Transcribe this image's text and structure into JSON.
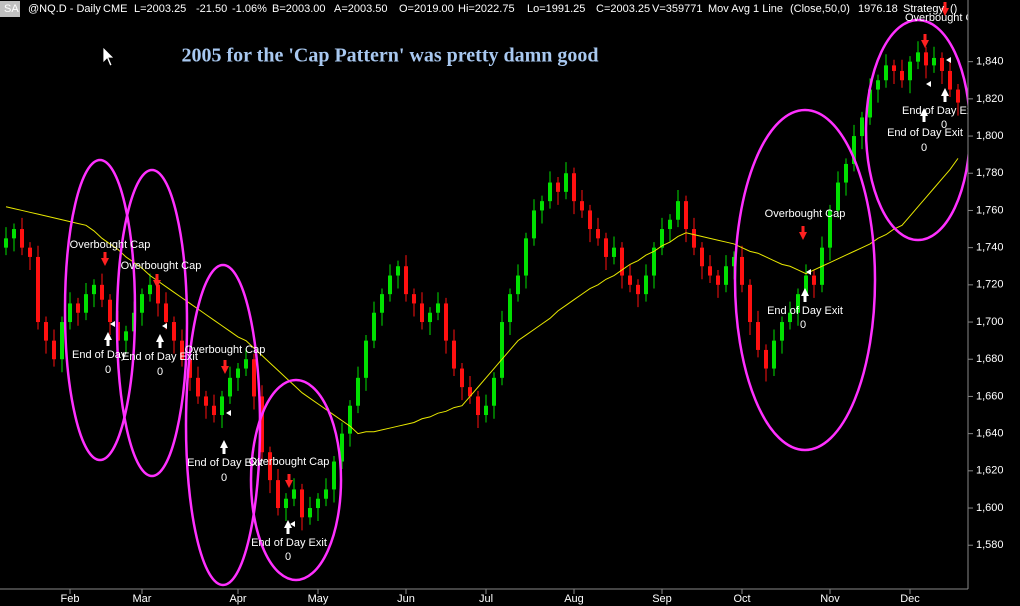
{
  "header": [
    {
      "text": "SA",
      "color": "#000000"
    },
    {
      "text": "@NQ.D - Daily",
      "color": "#00e000"
    },
    {
      "text": "CME",
      "color": "#00e000"
    },
    {
      "text": "L=2003.25",
      "color": "#ff3030"
    },
    {
      "text": "-21.50",
      "color": "#ff3030"
    },
    {
      "text": "-1.06%",
      "color": "#ff3030"
    },
    {
      "text": "B=2003.00",
      "color": "#ffffff"
    },
    {
      "text": "A=2003.50",
      "color": "#ffffff"
    },
    {
      "text": "O=2019.00",
      "color": "#ff3030"
    },
    {
      "text": "Hi=2022.75",
      "color": "#ffffff"
    },
    {
      "text": "Lo=1991.25",
      "color": "#ffffff"
    },
    {
      "text": "C=2003.25",
      "color": "#ff3030"
    },
    {
      "text": "V=359771",
      "color": "#ffffff"
    },
    {
      "text": "Mov Avg 1 Line",
      "color": "#ffffff"
    },
    {
      "text": "(Close,50,0)",
      "color": "#ffffff"
    },
    {
      "text": "1976.18",
      "color": "#ffff40"
    },
    {
      "text": "Strategy",
      "color": "#ffffff"
    },
    {
      "text": "()",
      "color": "#ffffff"
    }
  ],
  "chart_data": {
    "type": "candlestick",
    "title": "2005 for the 'Cap Pattern' was pretty damn good",
    "up_color": "#00e000",
    "down_color": "#ff1010",
    "ylim": [
      1557,
      1871
    ],
    "yticks": [
      {
        "value": 1580,
        "label": "1,580"
      },
      {
        "value": 1600,
        "label": "1,600"
      },
      {
        "value": 1620,
        "label": "1,620"
      },
      {
        "value": 1640,
        "label": "1,640"
      },
      {
        "value": 1660,
        "label": "1,660"
      },
      {
        "value": 1680,
        "label": "1,680"
      },
      {
        "value": 1700,
        "label": "1,700"
      },
      {
        "value": 1720,
        "label": "1,720"
      },
      {
        "value": 1740,
        "label": "1,740"
      },
      {
        "value": 1760,
        "label": "1,760"
      },
      {
        "value": 1780,
        "label": "1,780"
      },
      {
        "value": 1800,
        "label": "1,800"
      },
      {
        "value": 1820,
        "label": "1,820"
      },
      {
        "value": 1840,
        "label": "1,840"
      }
    ],
    "categories": [
      null,
      null,
      null,
      null,
      null,
      null,
      null,
      null,
      "Feb",
      null,
      null,
      null,
      null,
      null,
      null,
      null,
      null,
      "Mar",
      null,
      null,
      null,
      null,
      null,
      null,
      null,
      null,
      null,
      null,
      null,
      "Apr",
      null,
      null,
      null,
      null,
      null,
      null,
      null,
      null,
      null,
      "May",
      null,
      null,
      null,
      null,
      null,
      null,
      null,
      null,
      null,
      null,
      "Jun",
      null,
      null,
      null,
      null,
      null,
      null,
      null,
      null,
      null,
      "Jul",
      null,
      null,
      null,
      null,
      null,
      null,
      null,
      null,
      null,
      null,
      "Aug",
      null,
      null,
      null,
      null,
      null,
      null,
      null,
      null,
      null,
      null,
      "Sep",
      null,
      null,
      null,
      null,
      null,
      null,
      null,
      null,
      null,
      "Oct",
      null,
      null,
      null,
      null,
      null,
      null,
      null,
      null,
      null,
      null,
      "Nov",
      null,
      null,
      null,
      null,
      null,
      null,
      null,
      null,
      null,
      "Dec",
      null,
      null,
      null,
      null,
      null,
      null
    ],
    "open": [
      1740,
      1745,
      1750,
      1740,
      1735,
      1700,
      1690,
      1680,
      1700,
      1710,
      1705,
      1715,
      1720,
      1712,
      1700,
      1690,
      1695,
      1705,
      1715,
      1720,
      1710,
      1700,
      1690,
      1680,
      1670,
      1660,
      1655,
      1650,
      1660,
      1670,
      1675,
      1680,
      1660,
      1630,
      1615,
      1600,
      1605,
      1610,
      1595,
      1600,
      1605,
      1610,
      1625,
      1640,
      1655,
      1670,
      1690,
      1705,
      1715,
      1725,
      1730,
      1715,
      1710,
      1700,
      1705,
      1710,
      1690,
      1675,
      1665,
      1660,
      1650,
      1655,
      1670,
      1700,
      1715,
      1725,
      1745,
      1760,
      1765,
      1775,
      1770,
      1780,
      1765,
      1760,
      1750,
      1745,
      1735,
      1740,
      1725,
      1720,
      1715,
      1725,
      1740,
      1750,
      1755,
      1765,
      1750,
      1740,
      1730,
      1725,
      1720,
      1730,
      1735,
      1720,
      1700,
      1685,
      1675,
      1690,
      1700,
      1705,
      1715,
      1725,
      1720,
      1740,
      1760,
      1775,
      1785,
      1800,
      1810,
      1825,
      1830,
      1838,
      1835,
      1830,
      1840,
      1845,
      1838,
      1842,
      1835,
      1825
    ],
    "high": [
      1751,
      1753,
      1756,
      1743,
      1741,
      1703,
      1696,
      1703,
      1716,
      1713,
      1721,
      1723,
      1726,
      1715,
      1706,
      1698,
      1711,
      1718,
      1726,
      1723,
      1716,
      1703,
      1696,
      1683,
      1676,
      1663,
      1661,
      1663,
      1676,
      1678,
      1686,
      1683,
      1666,
      1633,
      1621,
      1608,
      1616,
      1613,
      1606,
      1608,
      1616,
      1628,
      1646,
      1658,
      1676,
      1693,
      1711,
      1718,
      1731,
      1733,
      1736,
      1718,
      1716,
      1708,
      1716,
      1713,
      1696,
      1678,
      1671,
      1663,
      1661,
      1673,
      1706,
      1718,
      1731,
      1748,
      1766,
      1768,
      1781,
      1778,
      1786,
      1783,
      1771,
      1763,
      1756,
      1748,
      1746,
      1743,
      1731,
      1723,
      1731,
      1743,
      1756,
      1758,
      1771,
      1768,
      1756,
      1743,
      1736,
      1728,
      1736,
      1738,
      1741,
      1723,
      1706,
      1688,
      1696,
      1703,
      1711,
      1718,
      1731,
      1728,
      1746,
      1763,
      1781,
      1788,
      1806,
      1813,
      1831,
      1833,
      1844,
      1841,
      1841,
      1843,
      1851,
      1848,
      1848,
      1845,
      1841,
      1828
    ],
    "low": [
      1736,
      1738,
      1736,
      1728,
      1696,
      1683,
      1676,
      1673,
      1696,
      1698,
      1701,
      1708,
      1708,
      1693,
      1686,
      1683,
      1691,
      1698,
      1711,
      1703,
      1696,
      1683,
      1676,
      1663,
      1656,
      1648,
      1646,
      1643,
      1656,
      1663,
      1671,
      1653,
      1626,
      1608,
      1596,
      1593,
      1601,
      1588,
      1591,
      1593,
      1601,
      1603,
      1621,
      1633,
      1651,
      1663,
      1686,
      1698,
      1711,
      1718,
      1711,
      1703,
      1696,
      1693,
      1701,
      1683,
      1671,
      1658,
      1656,
      1643,
      1646,
      1648,
      1666,
      1693,
      1711,
      1718,
      1741,
      1753,
      1761,
      1763,
      1766,
      1758,
      1756,
      1743,
      1741,
      1728,
      1731,
      1718,
      1716,
      1708,
      1711,
      1718,
      1736,
      1743,
      1751,
      1743,
      1736,
      1723,
      1721,
      1713,
      1716,
      1723,
      1716,
      1693,
      1681,
      1668,
      1671,
      1683,
      1696,
      1698,
      1711,
      1713,
      1716,
      1733,
      1756,
      1768,
      1781,
      1793,
      1806,
      1818,
      1826,
      1828,
      1826,
      1823,
      1836,
      1831,
      1834,
      1828,
      1821,
      1811
    ],
    "close": [
      1745,
      1750,
      1740,
      1735,
      1700,
      1690,
      1680,
      1700,
      1710,
      1705,
      1715,
      1720,
      1712,
      1700,
      1690,
      1695,
      1705,
      1715,
      1720,
      1710,
      1700,
      1690,
      1680,
      1670,
      1660,
      1655,
      1650,
      1660,
      1670,
      1675,
      1680,
      1660,
      1630,
      1615,
      1600,
      1605,
      1610,
      1595,
      1600,
      1605,
      1610,
      1625,
      1640,
      1655,
      1670,
      1690,
      1705,
      1715,
      1725,
      1730,
      1715,
      1710,
      1700,
      1705,
      1710,
      1690,
      1675,
      1665,
      1660,
      1650,
      1655,
      1670,
      1700,
      1715,
      1725,
      1745,
      1760,
      1765,
      1775,
      1770,
      1780,
      1765,
      1760,
      1750,
      1745,
      1735,
      1740,
      1725,
      1720,
      1715,
      1725,
      1740,
      1750,
      1755,
      1765,
      1750,
      1740,
      1730,
      1725,
      1720,
      1730,
      1735,
      1720,
      1700,
      1685,
      1675,
      1690,
      1700,
      1705,
      1715,
      1725,
      1720,
      1740,
      1760,
      1775,
      1785,
      1800,
      1810,
      1825,
      1830,
      1838,
      1835,
      1830,
      1840,
      1845,
      1838,
      1842,
      1835,
      1825,
      1818
    ],
    "moving_average": {
      "color": "#e8e800",
      "values": [
        1762,
        1761,
        1760,
        1759,
        1758,
        1757,
        1756,
        1755,
        1754,
        1753,
        1752,
        1749,
        1745,
        1742,
        1739,
        1735,
        1732,
        1729,
        1725,
        1722,
        1719,
        1716,
        1713,
        1710,
        1707,
        1704,
        1701,
        1698,
        1695,
        1692,
        1690,
        1686,
        1682,
        1678,
        1674,
        1670,
        1666,
        1662,
        1659,
        1656,
        1653,
        1650,
        1647,
        1644,
        1640,
        1641,
        1641,
        1642,
        1643,
        1644,
        1645,
        1646,
        1648,
        1649,
        1651,
        1652,
        1654,
        1655,
        1660,
        1665,
        1670,
        1675,
        1680,
        1685,
        1690,
        1693,
        1696,
        1699,
        1702,
        1706,
        1709,
        1712,
        1715,
        1718,
        1720,
        1723,
        1725,
        1728,
        1731,
        1733,
        1736,
        1738,
        1741,
        1743,
        1746,
        1748,
        1747,
        1746,
        1745,
        1744,
        1743,
        1742,
        1740,
        1738,
        1737,
        1735,
        1733,
        1731,
        1730,
        1728,
        1726,
        1728,
        1730,
        1732,
        1734,
        1736,
        1738,
        1740,
        1742,
        1745,
        1747,
        1750,
        1752,
        1757,
        1762,
        1767,
        1772,
        1777,
        1782,
        1788
      ]
    },
    "annotations": [
      "Overbought Cap",
      "Overbought Cap",
      "Overbought Cap",
      "Overbought Cap",
      "Overbought Cap",
      "Overbought Cap",
      "End of Day",
      "End of Day Exit",
      "End of Day Exit",
      "End of Day Exit",
      "End of Day Exit",
      "End of Day Exit",
      "End of Day Exit"
    ],
    "exit_values": [
      0,
      0,
      0,
      0,
      0,
      0,
      0
    ]
  }
}
